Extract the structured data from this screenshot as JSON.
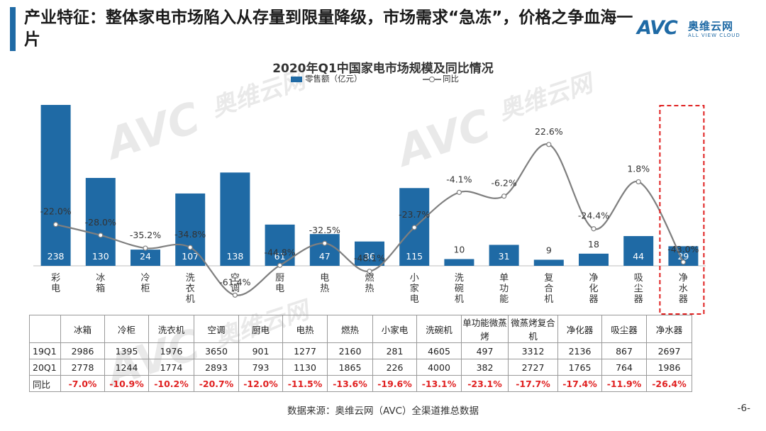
{
  "header": {
    "title": "产业特征：整体家电市场陷入从存量到限量降级，市场需求“急冻”，价格之争血海一片",
    "brand_logo": "AVC",
    "brand_name_cn": "奥维云网",
    "brand_name_en": "ALL VIEW CLOUD",
    "accent_color": "#1f6aa5"
  },
  "chart_data": {
    "type": "bar",
    "title": "2020年Q1中国家电市场规模及同比情况",
    "legend_position": "top-center",
    "categories": [
      "彩电",
      "冰箱",
      "冷柜",
      "洗衣机",
      "空调",
      "厨电",
      "电热",
      "燃热",
      "小家电",
      "洗碗机",
      "单功能",
      "复合机",
      "净化器",
      "吸尘器",
      "净水器"
    ],
    "series": [
      {
        "name": "零售额（亿元）",
        "type": "bar",
        "color": "#1f6aa5",
        "values": [
          238,
          130,
          24,
          107,
          138,
          61,
          47,
          36,
          115,
          10,
          31,
          9,
          18,
          44,
          29
        ]
      },
      {
        "name": "同比",
        "type": "line",
        "color": "#7f7f7f",
        "values": [
          -22.0,
          -28.0,
          -35.2,
          -34.8,
          -61.4,
          -44.8,
          -32.5,
          -48.1,
          -23.7,
          -4.1,
          -6.2,
          22.6,
          -24.4,
          1.8,
          -43.0
        ],
        "labels": [
          "-22.0%",
          "-28.0%",
          "-35.2%",
          "-34.8%",
          "-61.4%",
          "-44.8%",
          "-32.5%",
          "-48.1%",
          "-23.7%",
          "-4.1%",
          "-6.2%",
          "22.6%",
          "-24.4%",
          "1.8%",
          "-43.0%"
        ]
      }
    ],
    "highlight_category": "净水器",
    "highlight_color": "#e02020",
    "grid": false
  },
  "table": {
    "columns": [
      "",
      "冰箱",
      "冷柜",
      "洗衣机",
      "空调",
      "厨电",
      "电热",
      "燃热",
      "小家电",
      "洗碗机",
      "单功能微蒸烤",
      "微蒸烤复合机",
      "净化器",
      "吸尘器",
      "净水器"
    ],
    "rows": [
      {
        "label": "19Q1",
        "values": [
          "2986",
          "1395",
          "1976",
          "3650",
          "901",
          "1277",
          "2160",
          "281",
          "4605",
          "497",
          "3312",
          "2136",
          "867",
          "2697"
        ]
      },
      {
        "label": "20Q1",
        "values": [
          "2778",
          "1244",
          "1774",
          "2893",
          "793",
          "1130",
          "1865",
          "226",
          "4000",
          "382",
          "2727",
          "1765",
          "764",
          "1986"
        ]
      },
      {
        "label": "同比",
        "values": [
          "-7.0%",
          "-10.9%",
          "-10.2%",
          "-20.7%",
          "-12.0%",
          "-11.5%",
          "-13.6%",
          "-19.6%",
          "-13.1%",
          "-23.1%",
          "-17.7%",
          "-17.4%",
          "-11.9%",
          "-26.4%"
        ]
      }
    ]
  },
  "footer": {
    "source": "数据来源：奥维云网（AVC）全渠道推总数据",
    "page_number": "-6-"
  },
  "watermark": {
    "logo": "AVC",
    "cn": "奥维云网",
    "en": "ALL VIEW CLOUD"
  }
}
